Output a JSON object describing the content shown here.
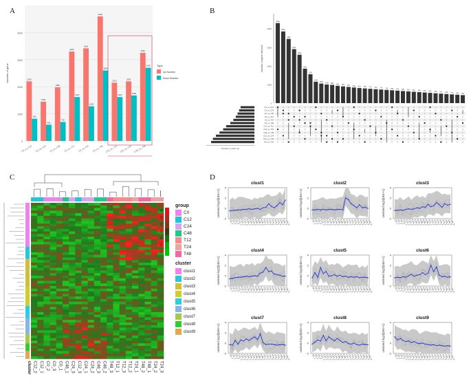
{
  "panels": {
    "a": "A",
    "b": "B",
    "c": "C",
    "d": "D"
  },
  "panelA": {
    "chart_data": {
      "type": "bar",
      "ylabel": "Number of gene",
      "legend_title": "Type",
      "series": [
        {
          "name": "Up Number",
          "color": "#f8766d",
          "values": [
            2200,
            1450,
            1980,
            3300,
            3420,
            4600,
            2150,
            2200,
            3250
          ]
        },
        {
          "name": "Down Number",
          "color": "#00bfc4",
          "values": [
            820,
            600,
            700,
            1620,
            1280,
            2600,
            1620,
            1680,
            2700
          ]
        }
      ],
      "categories": [
        "C0_vs_C12",
        "C0_vs_C24",
        "C0_vs_C48",
        "C0_vs_T12",
        "C0_vs_T24",
        "C0_vs_T48",
        "C12_vs_T12",
        "C24_vs_T24",
        "C48_vs_T48"
      ],
      "ylim": [
        0,
        5000
      ],
      "yticks": [
        0,
        1000,
        2000,
        3000,
        4000
      ]
    }
  },
  "panelB": {
    "chart_data": {
      "type": "bar",
      "ylabel": "Number of gene intersect",
      "xlabel": "Number in each set",
      "values": [
        4300,
        3850,
        3450,
        2900,
        2600,
        1850,
        1550,
        1150,
        1050,
        1000,
        980,
        930,
        900,
        870,
        840,
        810,
        790,
        770,
        750,
        730,
        710,
        690,
        670,
        650,
        630,
        610,
        590,
        570,
        550,
        530,
        510,
        490,
        470,
        450,
        430
      ],
      "ylim": [
        0,
        4800
      ],
      "set_names": [
        "C0_vs_C12",
        "C0_vs_C24",
        "C0_vs_C48",
        "C0_vs_T12",
        "C0_vs_T24",
        "C0_vs_T48",
        "C12_vs_T12",
        "C24_vs_T24",
        "C48_vs_T48",
        "C12_vs_C24",
        "C24_vs_C48",
        "T12_vs_T24"
      ],
      "set_sizes": [
        2300,
        2550,
        2800,
        3100,
        3500,
        4000,
        4700,
        5200,
        5800,
        6400,
        6900,
        7200
      ]
    }
  },
  "panelC": {
    "group_title": "group",
    "groups": [
      {
        "name": "C0",
        "color": "#ee82ee"
      },
      {
        "name": "C12",
        "color": "#1fc6d6"
      },
      {
        "name": "C24",
        "color": "#d7a4f0"
      },
      {
        "name": "C48",
        "color": "#1ec98d"
      },
      {
        "name": "T12",
        "color": "#f78a8a"
      },
      {
        "name": "T24",
        "color": "#f2a0a0"
      },
      {
        "name": "T48",
        "color": "#f06aa0"
      }
    ],
    "scale_ticks": [
      "4",
      "3",
      "2",
      "1",
      "0",
      "-1",
      "-2"
    ],
    "cluster_title": "cluster",
    "clusters": [
      {
        "name": "clust1",
        "color": "#ee82ee"
      },
      {
        "name": "clust2",
        "color": "#27c9d9"
      },
      {
        "name": "clust3",
        "color": "#d1bf3a"
      },
      {
        "name": "clust4",
        "color": "#cfcf2b"
      },
      {
        "name": "clust5",
        "color": "#2ad0e0"
      },
      {
        "name": "clust6",
        "color": "#86b6e8"
      },
      {
        "name": "clust7",
        "color": "#a8c84a"
      },
      {
        "name": "clust8",
        "color": "#33cc33"
      },
      {
        "name": "clust9",
        "color": "#e4a650"
      }
    ],
    "row_axis_label": "cluster",
    "column_labels": [
      "C12_2",
      "C12_1",
      "C0_2",
      "C0_3",
      "C0_1",
      "C48_1",
      "C24_3",
      "C12_3",
      "C24_1",
      "C24_2",
      "C48_3",
      "C48_2",
      "T48_3",
      "T12_1",
      "T12_3",
      "T12_2",
      "T24_1",
      "T48_2",
      "T48_1",
      "T24_2",
      "T24_3"
    ]
  },
  "panelD": {
    "ylabel": "centered log2(fpkm+1)",
    "yticks": [
      "4",
      "3",
      "2",
      "1",
      "0",
      "-1",
      "-2"
    ],
    "conditions": [
      "C0_1",
      "C0_2",
      "C0_3",
      "C12_1",
      "C12_2",
      "C12_3",
      "C24_1",
      "C24_2",
      "C24_3",
      "C48_1",
      "C48_2",
      "C48_3",
      "T12_1",
      "T12_2",
      "T12_3",
      "T24_1",
      "T24_2",
      "T24_3",
      "T48_1",
      "T48_2",
      "T48_3"
    ],
    "chart_data": [
      {
        "type": "line",
        "title": "clust1",
        "values": [
          -0.5,
          -0.4,
          -0.4,
          -0.3,
          -0.3,
          -0.2,
          -0.2,
          -0.1,
          -0.2,
          -0.1,
          0.0,
          -0.2,
          0.1,
          0.2,
          0.9,
          0.4,
          0.1,
          0.5,
          1.1,
          0.7,
          1.6
        ]
      },
      {
        "type": "line",
        "title": "clust2",
        "values": [
          -0.3,
          -0.3,
          -0.2,
          -0.3,
          -0.2,
          -0.3,
          -0.2,
          -0.2,
          -0.3,
          -0.2,
          -0.2,
          -0.3,
          2.0,
          1.7,
          0.9,
          0.5,
          0.1,
          0.7,
          0.1,
          0.2,
          0.0
        ]
      },
      {
        "type": "line",
        "title": "clust3",
        "values": [
          -0.4,
          -0.4,
          -0.3,
          -0.4,
          -0.2,
          -0.1,
          -0.2,
          -0.1,
          0.1,
          0.0,
          0.3,
          0.2,
          0.8,
          0.3,
          0.5,
          1.1,
          0.7,
          0.2,
          0.9,
          0.6,
          0.8
        ]
      },
      {
        "type": "line",
        "title": "clust4",
        "values": [
          -0.6,
          -0.5,
          -0.4,
          -0.3,
          -0.3,
          -0.2,
          -0.1,
          -0.2,
          -0.1,
          0.0,
          -0.1,
          0.5,
          0.7,
          1.6,
          0.8,
          0.9,
          0.3,
          0.2,
          0.1,
          -0.1,
          -0.1
        ]
      },
      {
        "type": "line",
        "title": "clust5",
        "values": [
          -0.4,
          0.6,
          -0.3,
          1.6,
          0.4,
          0.8,
          -0.1,
          0.0,
          0.2,
          -0.1,
          0.1,
          -0.2,
          -0.1,
          -0.3,
          -0.2,
          -0.3,
          -0.2,
          -0.4,
          -0.3,
          -0.3,
          -0.4
        ]
      },
      {
        "type": "line",
        "title": "clust6",
        "values": [
          -0.4,
          -0.3,
          -0.4,
          -0.2,
          -0.3,
          0.0,
          0.3,
          -0.1,
          0.1,
          0.2,
          0.6,
          0.2,
          0.5,
          2.0,
          0.8,
          1.7,
          0.1,
          -0.2,
          -0.1,
          -0.3,
          -0.2
        ]
      },
      {
        "type": "line",
        "title": "clust7",
        "values": [
          -0.3,
          -0.4,
          0.5,
          -0.2,
          0.6,
          0.4,
          0.8,
          0.5,
          0.9,
          1.2,
          0.7,
          1.8,
          0.1,
          -0.3,
          -0.2,
          -0.2,
          -0.3,
          -0.4,
          -0.3,
          -0.3,
          -0.4
        ]
      },
      {
        "type": "line",
        "title": "clust8",
        "values": [
          -0.2,
          0.2,
          0.6,
          0.4,
          1.5,
          0.5,
          1.2,
          0.8,
          0.4,
          0.9,
          0.5,
          0.1,
          0.3,
          -0.1,
          -0.2,
          0.0,
          -0.3,
          -0.4,
          -0.2,
          -0.3,
          -0.3
        ]
      },
      {
        "type": "line",
        "title": "clust9",
        "values": [
          1.2,
          0.6,
          0.9,
          0.5,
          0.3,
          0.4,
          0.1,
          0.3,
          0.0,
          -0.1,
          0.0,
          -0.2,
          -0.3,
          -0.4,
          -0.3,
          -0.5,
          -0.4,
          -0.5,
          -0.6,
          -0.5,
          -0.6
        ]
      }
    ]
  }
}
